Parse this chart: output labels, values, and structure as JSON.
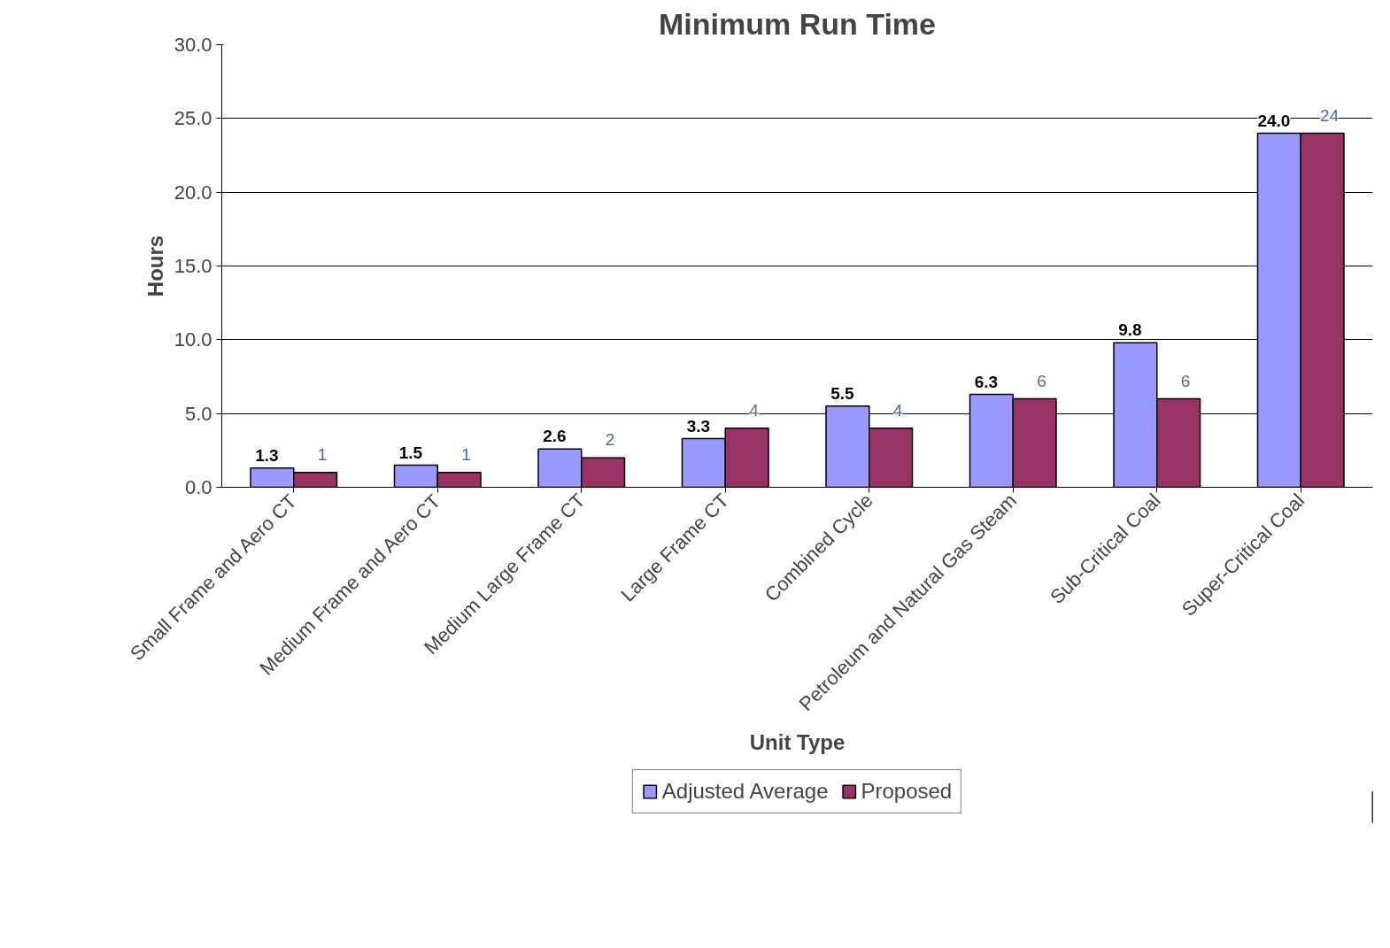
{
  "chart_data": {
    "type": "bar",
    "title": "Minimum Run Time",
    "xlabel": "Unit Type",
    "ylabel": "Hours",
    "categories": [
      "Small Frame and Aero CT",
      "Medium Frame and Aero CT",
      "Medium Large Frame CT",
      "Large Frame CT",
      "Combined Cycle",
      "Petroleum and Natural Gas Steam",
      "Sub-Critical Coal",
      "Super-Critical Coal"
    ],
    "series": [
      {
        "name": "Adjusted Average",
        "color": "#9999ff",
        "values": [
          1.3,
          1.5,
          2.6,
          3.3,
          5.5,
          6.3,
          9.8,
          24.0
        ],
        "value_labels": [
          "1.3",
          "1.5",
          "2.6",
          "3.3",
          "5.5",
          "6.3",
          "9.8",
          "24.0"
        ]
      },
      {
        "name": "Proposed",
        "color": "#993366",
        "values": [
          1,
          1,
          2,
          4,
          4,
          6,
          6,
          24
        ],
        "value_labels": [
          "1",
          "1",
          "2",
          "4",
          "4",
          "6",
          "6",
          "24"
        ]
      }
    ],
    "ylim": [
      0,
      30
    ],
    "yticks": [
      {
        "value": 0,
        "label": "0.0"
      },
      {
        "value": 5,
        "label": "5.0"
      },
      {
        "value": 10,
        "label": "10.0"
      },
      {
        "value": 15,
        "label": "15.0"
      },
      {
        "value": 20,
        "label": "20.0"
      },
      {
        "value": 25,
        "label": "25.0"
      },
      {
        "value": 30,
        "label": "30.0"
      }
    ],
    "grid": "y",
    "legend": "bottom"
  }
}
